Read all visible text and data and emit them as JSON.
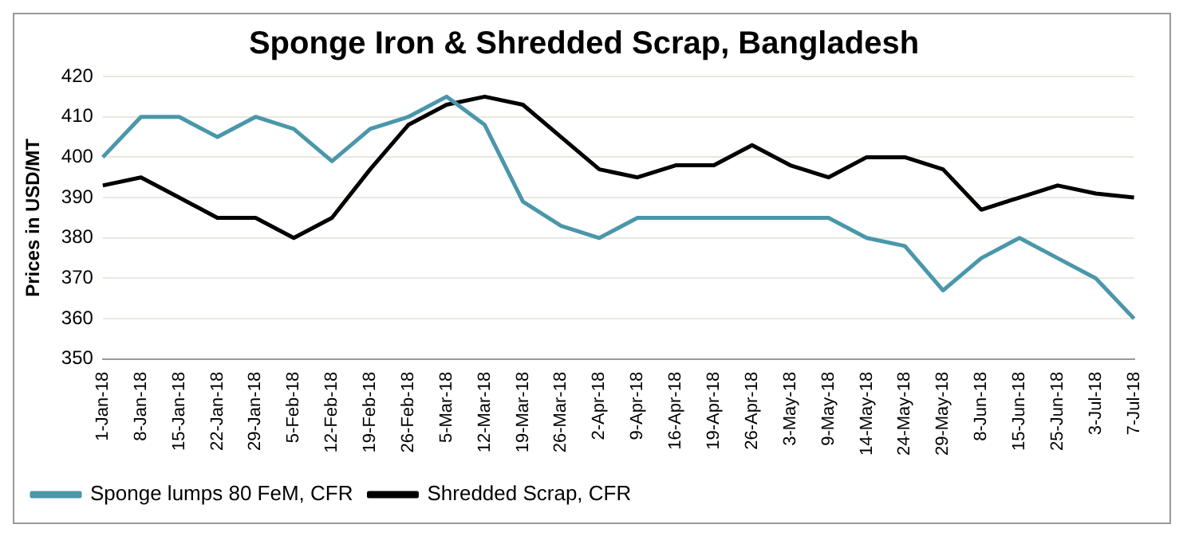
{
  "chart_data": {
    "type": "line",
    "title": "Sponge Iron & Shredded Scrap, Bangladesh",
    "ylabel": "Prices in USD/MT",
    "categories": [
      "1-Jan-18",
      "8-Jan-18",
      "15-Jan-18",
      "22-Jan-18",
      "29-Jan-18",
      "5-Feb-18",
      "12-Feb-18",
      "19-Feb-18",
      "26-Feb-18",
      "5-Mar-18",
      "12-Mar-18",
      "19-Mar-18",
      "26-Mar-18",
      "2-Apr-18",
      "9-Apr-18",
      "16-Apr-18",
      "19-Apr-18",
      "26-Apr-18",
      "3-May-18",
      "9-May-18",
      "14-May-18",
      "24-May-18",
      "29-May-18",
      "8-Jun-18",
      "15-Jun-18",
      "25-Jun-18",
      "3-Jul-18",
      "7-Jul-18"
    ],
    "series": [
      {
        "name": "Sponge lumps 80 FeM, CFR",
        "color": "#4a97aa",
        "values": [
          400,
          410,
          410,
          405,
          410,
          407,
          399,
          407,
          410,
          415,
          408,
          389,
          383,
          380,
          385,
          385,
          385,
          385,
          385,
          385,
          380,
          378,
          367,
          375,
          380,
          375,
          370,
          360
        ]
      },
      {
        "name": "Shredded Scrap, CFR",
        "color": "#000000",
        "values": [
          393,
          395,
          390,
          385,
          385,
          380,
          385,
          397,
          408,
          413,
          415,
          413,
          405,
          397,
          395,
          398,
          398,
          403,
          398,
          395,
          400,
          400,
          397,
          387,
          390,
          393,
          391,
          390
        ]
      }
    ],
    "ylim": [
      350,
      420
    ],
    "yticks": [
      350,
      360,
      370,
      380,
      390,
      400,
      410,
      420
    ],
    "grid": "y",
    "legend": "bottom left",
    "marker": "none",
    "line_style": "solid"
  }
}
